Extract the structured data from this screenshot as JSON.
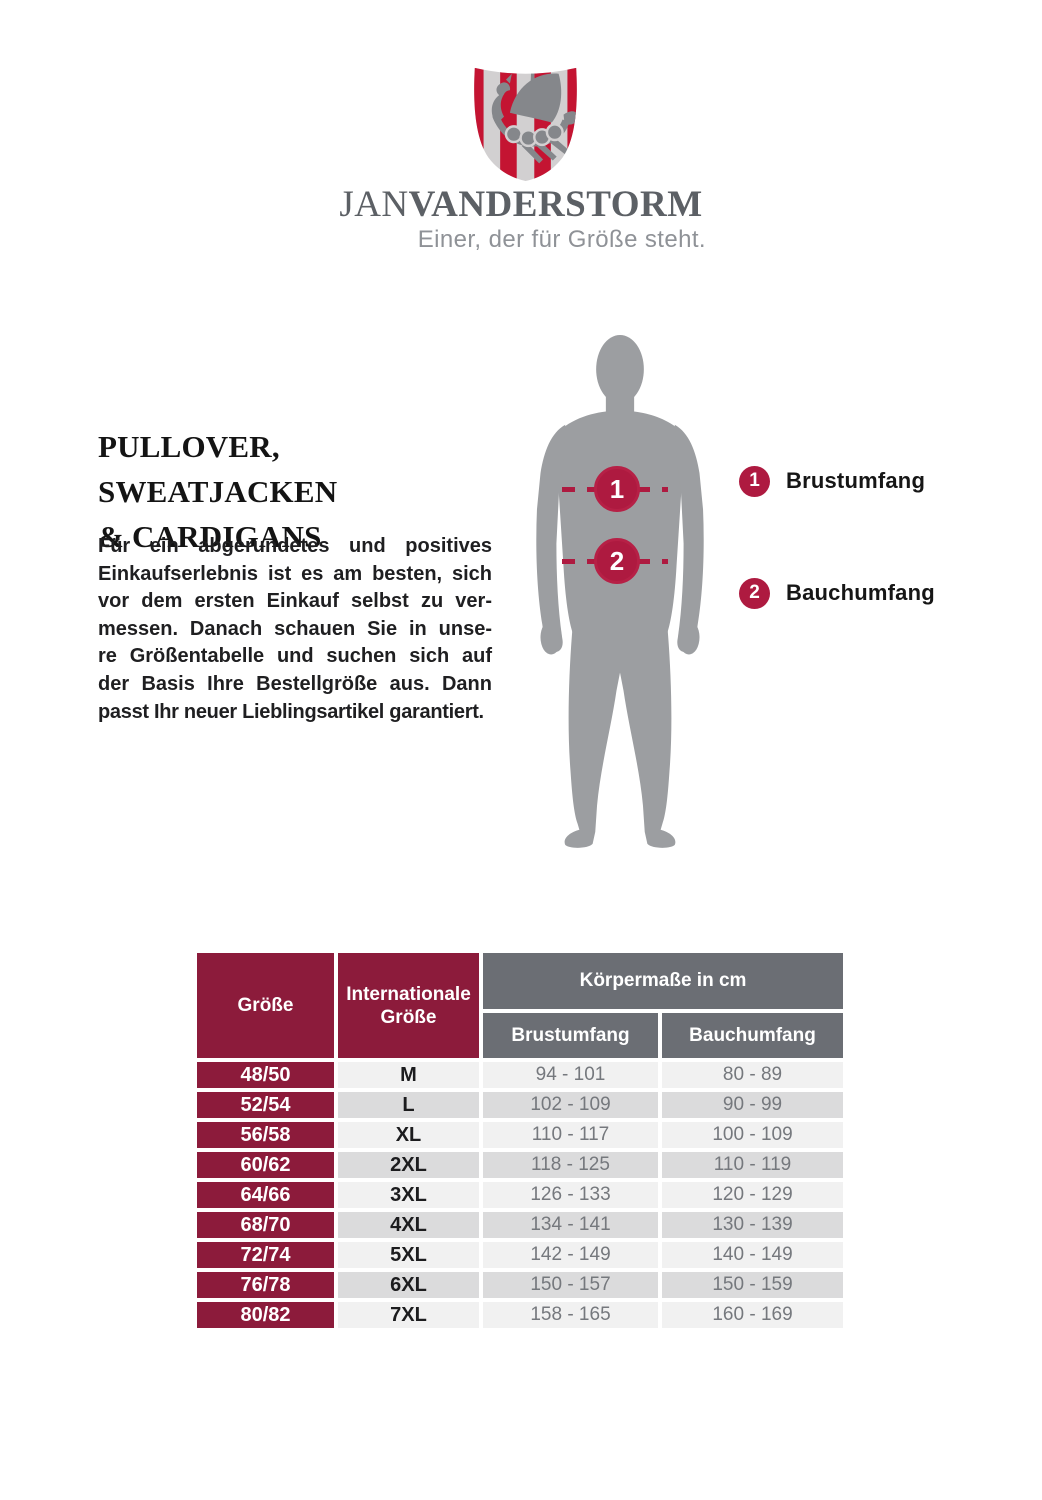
{
  "brand": {
    "name_regular": "JAN",
    "name_bold": "VANDERSTORM",
    "tagline": "Einer, der für Größe steht.",
    "logo": {
      "icon": "viking-ship-shield",
      "stripe_red": "#c41432",
      "stripe_gray": "#d2d0d1",
      "ship_gray": "#85878b"
    }
  },
  "intro": {
    "heading_line1": "PULLOVER, SWEATJACKEN",
    "heading_line2": "& CARDIGANS",
    "paragraph": "Für ein abgerundetes und positives Einkaufserlebnis ist es am besten, sich vor dem ersten Einkauf selbst zu vermessen. Danach schauen Sie in unsere Größentabelle und suchen sich auf der Basis Ihre Bestellgröße aus. Dann passt Ihr neuer Lieblingsartikel garantiert.",
    "paragraph_lines": [
      "Für ein abgerundetes und positives",
      "Einkaufserlebnis ist es am besten, sich",
      "vor dem ersten Einkauf selbst zu ver-",
      "messen. Danach schauen Sie in unse-",
      "re Größentabelle und suchen sich auf",
      "der Basis Ihre Bestellgröße aus. Dann",
      "passt Ihr neuer Lieblingsartikel garantiert."
    ]
  },
  "measure_guide": {
    "figure": "male-silhouette",
    "marker_color": "#ae1a40",
    "silhouette_color": "#9c9ea1",
    "markers": [
      {
        "number": "1",
        "label": "Brustumfang"
      },
      {
        "number": "2",
        "label": "Bauchumfang"
      }
    ]
  },
  "size_table": {
    "col_headers": {
      "size": "Größe",
      "international": "Internationale Größe",
      "group": "Körpermaße in cm",
      "chest": "Brustumfang",
      "waist": "Bauchumfang"
    },
    "colors": {
      "maroon": "#8c1b3b",
      "gray": "#6b6e74",
      "row_light": "#f1f1f1",
      "row_dark": "#dbdbdc"
    },
    "rows": [
      {
        "size": "48/50",
        "int": "M",
        "chest": "94 - 101",
        "waist": "80 - 89"
      },
      {
        "size": "52/54",
        "int": "L",
        "chest": "102 - 109",
        "waist": "90 - 99"
      },
      {
        "size": "56/58",
        "int": "XL",
        "chest": "110 - 117",
        "waist": "100 - 109"
      },
      {
        "size": "60/62",
        "int": "2XL",
        "chest": "118 - 125",
        "waist": "110 - 119"
      },
      {
        "size": "64/66",
        "int": "3XL",
        "chest": "126 - 133",
        "waist": "120 - 129"
      },
      {
        "size": "68/70",
        "int": "4XL",
        "chest": "134 - 141",
        "waist": "130 - 139"
      },
      {
        "size": "72/74",
        "int": "5XL",
        "chest": "142 - 149",
        "waist": "140 - 149"
      },
      {
        "size": "76/78",
        "int": "6XL",
        "chest": "150 - 157",
        "waist": "150 - 159"
      },
      {
        "size": "80/82",
        "int": "7XL",
        "chest": "158 - 165",
        "waist": "160 - 169"
      }
    ]
  }
}
